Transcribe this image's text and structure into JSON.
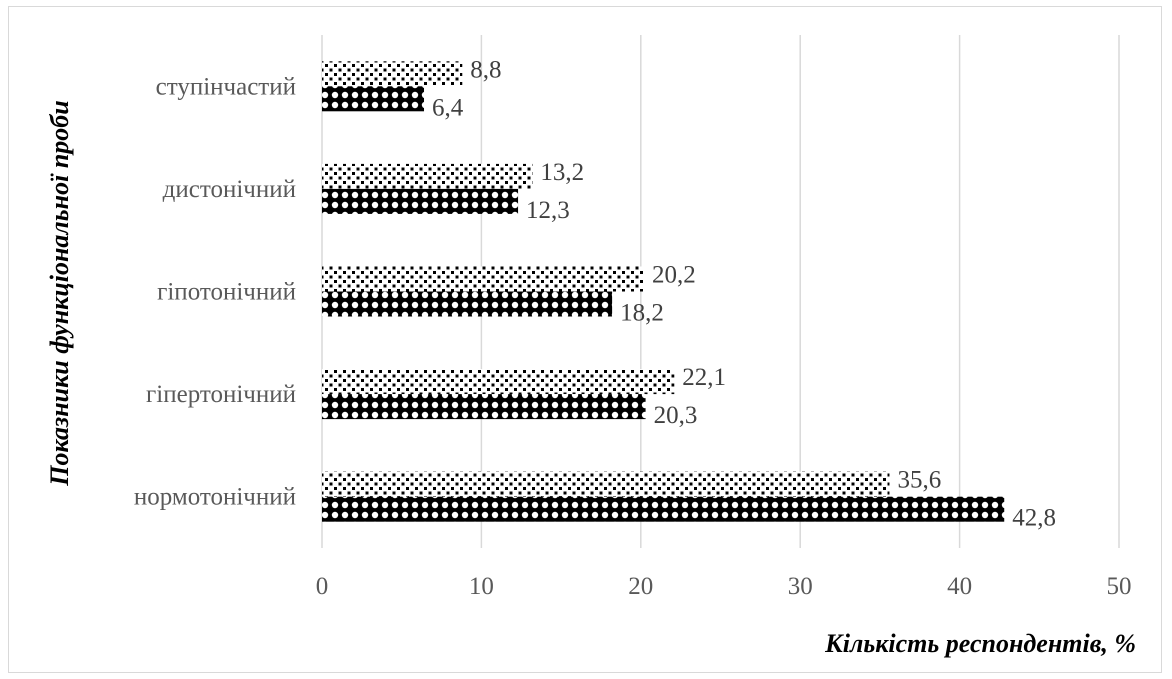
{
  "chart_data": {
    "type": "bar",
    "orientation": "horizontal",
    "categories": [
      "нормотонічний",
      "гіпертонічний",
      "гіпотонічний",
      "дистонічний",
      "ступінчастий"
    ],
    "series": [
      {
        "values": [
          35.6,
          22.1,
          20.2,
          13.2,
          8.8
        ],
        "labels": [
          "35,6",
          "22,1",
          "20,2",
          "13,2",
          "8,8"
        ],
        "pattern": "dots"
      },
      {
        "values": [
          42.8,
          20.3,
          18.2,
          12.3,
          6.4
        ],
        "labels": [
          "42,8",
          "20,3",
          "18,2",
          "12,3",
          "6,4"
        ],
        "pattern": "circles"
      }
    ],
    "xlim": [
      0,
      50
    ],
    "x_ticks": [
      0,
      10,
      20,
      30,
      40,
      50
    ],
    "xlabel": "Кількість респондентів, %",
    "ylabel": "Показники функціональної проби",
    "grid": "vertical",
    "legend": "none"
  }
}
